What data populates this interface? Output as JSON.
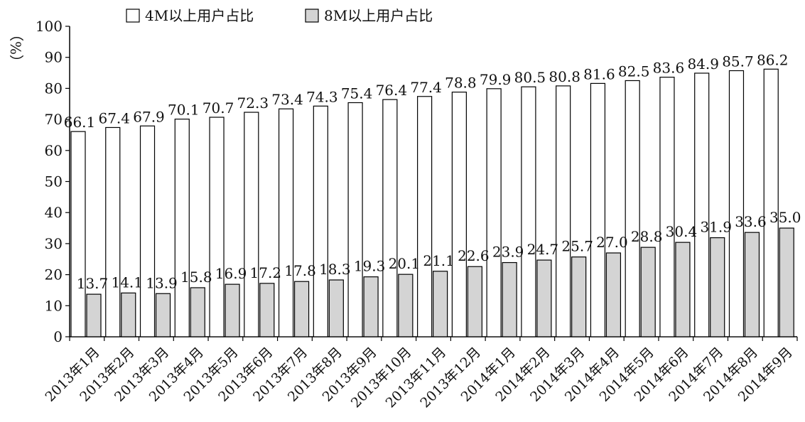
{
  "chart_data": {
    "type": "bar",
    "ylabel": "（%）",
    "ylim": [
      0,
      100
    ],
    "yticks": [
      0,
      10,
      20,
      30,
      40,
      50,
      60,
      70,
      80,
      90,
      100
    ],
    "grid": false,
    "legend_position": "top",
    "categories": [
      "2013年1月",
      "2013年2月",
      "2013年3月",
      "2013年4月",
      "2013年5月",
      "2013年6月",
      "2013年7月",
      "2013年8月",
      "2013年9月",
      "2013年10月",
      "2013年11月",
      "2013年12月",
      "2014年1月",
      "2014年2月",
      "2014年3月",
      "2014年4月",
      "2014年5月",
      "2014年6月",
      "2014年7月",
      "2014年8月",
      "2014年9月"
    ],
    "series": [
      {
        "name": "4M以上用户占比",
        "color": "#ffffff",
        "values": [
          66.1,
          67.4,
          67.9,
          70.1,
          70.7,
          72.3,
          73.4,
          74.3,
          75.4,
          76.4,
          77.4,
          78.8,
          79.9,
          80.5,
          80.8,
          81.6,
          82.5,
          83.6,
          84.9,
          85.7,
          86.2
        ],
        "labels": [
          "66.1",
          "67.4",
          "67.9",
          "70.1",
          "70.7",
          "72.3",
          "73.4",
          "74.3",
          "75.4",
          "76.4",
          "77.4",
          "78.8",
          "79.9",
          "80.5",
          "80.8",
          "81.6",
          "82.5",
          "83.6",
          "84.9",
          "85.7",
          "86.2"
        ]
      },
      {
        "name": "8M以上用户占比",
        "color": "#d4d4d4",
        "values": [
          13.7,
          14.1,
          13.9,
          15.8,
          16.9,
          17.2,
          17.8,
          18.3,
          19.3,
          20.1,
          21.1,
          22.6,
          23.9,
          24.7,
          25.7,
          27.0,
          28.8,
          30.4,
          31.9,
          33.6,
          35.0
        ],
        "labels": [
          "13.7",
          "14.1",
          "13.9",
          "15.8",
          "16.9",
          "17.2",
          "17.8",
          "18.3",
          "19.3",
          "20.1",
          "21.1",
          "22.6",
          "23.9",
          "24.7",
          "25.7",
          "27.0",
          "28.8",
          "30.4",
          "31.9",
          "33.6",
          "35.0"
        ]
      }
    ]
  }
}
